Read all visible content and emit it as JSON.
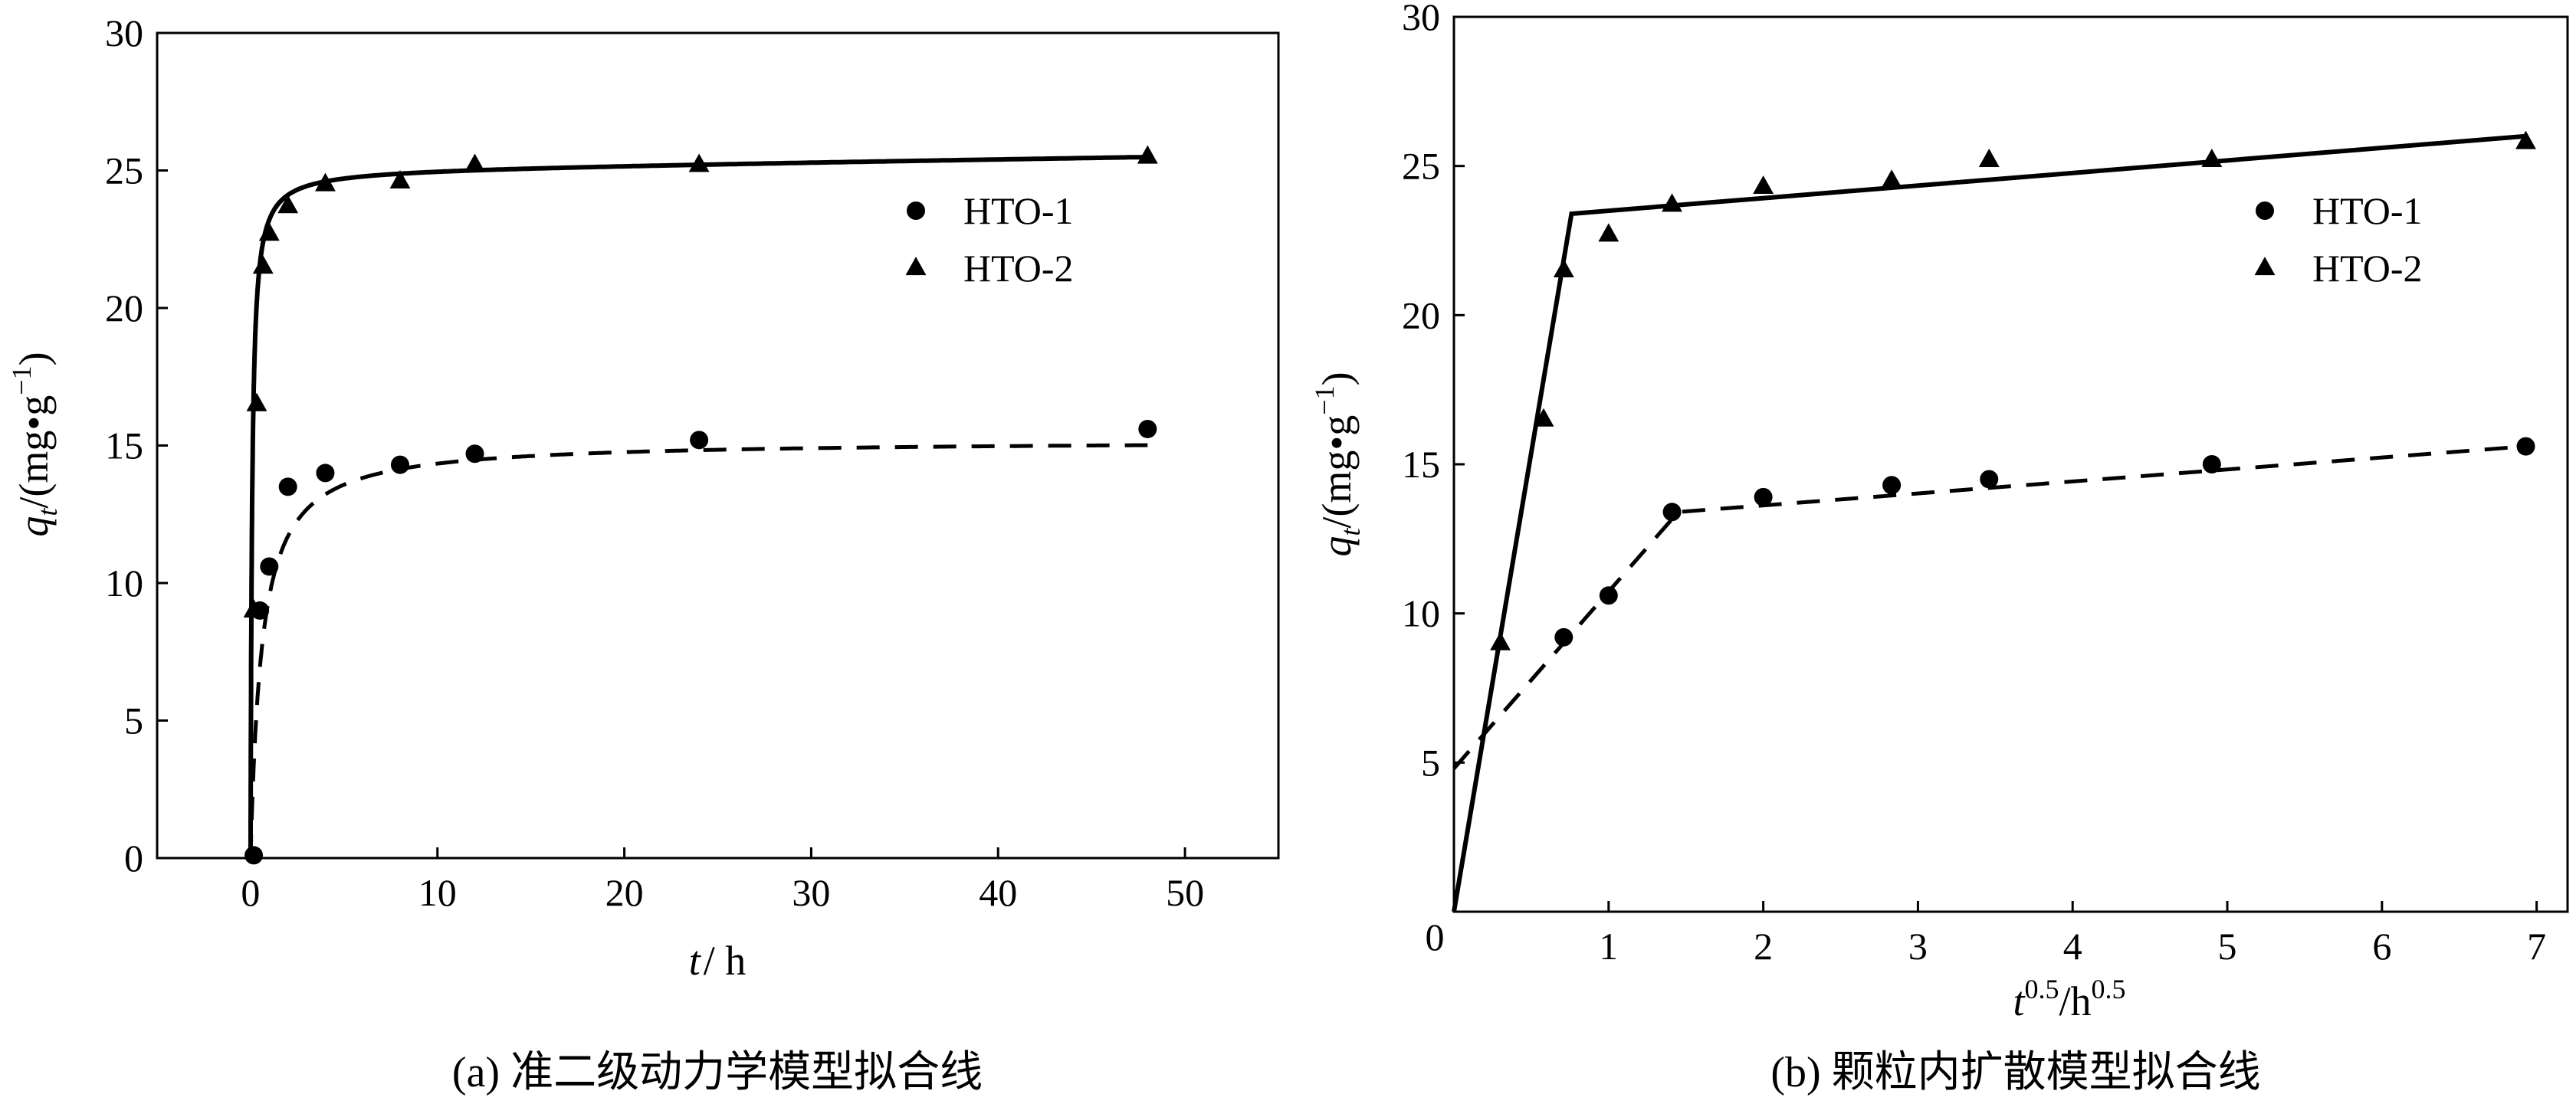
{
  "chart_data": [
    {
      "type": "scatter",
      "caption": "(a) 准二级动力学模型拟合线",
      "xlabel_main": "t",
      "xlabel_unit": "/ h",
      "ylabel_main": "q",
      "ylabel_sub": "t",
      "ylabel_unit": "/(mg•g",
      "ylabel_exp": "−1",
      "ylabel_close": ")",
      "xlim": [
        -5,
        55
      ],
      "ylim": [
        0,
        30
      ],
      "xticks": [
        0,
        10,
        20,
        30,
        40,
        50
      ],
      "yticks": [
        0,
        5,
        10,
        15,
        20,
        25,
        30
      ],
      "legend_position": "top-right",
      "series": [
        {
          "name": "HTO-1",
          "marker": "circle",
          "x": [
            0.17,
            0.5,
            1,
            2,
            4,
            8,
            12,
            24,
            48
          ],
          "y": [
            0.1,
            9.0,
            10.6,
            13.5,
            14.0,
            14.3,
            14.7,
            15.2,
            15.6
          ],
          "fit": {
            "style": "dashed",
            "model": "pseudo-second-order",
            "qe": 15.2,
            "k": 0.11
          }
        },
        {
          "name": "HTO-2",
          "marker": "triangle",
          "x": [
            0.17,
            0.33,
            0.67,
            1,
            2,
            4,
            8,
            12,
            24,
            48
          ],
          "y": [
            9.0,
            16.5,
            21.5,
            22.7,
            23.7,
            24.5,
            24.6,
            25.2,
            25.2,
            25.5
          ],
          "fit": {
            "style": "solid",
            "model": "pseudo-second-order-plus-drift",
            "qe": 25.05,
            "k": 0.5,
            "drift": 0.01
          }
        }
      ]
    },
    {
      "type": "scatter",
      "caption": "(b) 颗粒内扩散模型拟合线",
      "xlabel_base": "t",
      "xlabel_exp": "0.5",
      "xlabel_sep": "/h",
      "xlabel_exp2": "0.5",
      "ylabel_main": "q",
      "ylabel_sub": "t",
      "ylabel_unit": "/(mg•g",
      "ylabel_exp": "−1",
      "ylabel_close": ")",
      "xlim": [
        0,
        7.2
      ],
      "ylim": [
        0,
        30
      ],
      "xticks": [
        0,
        1,
        2,
        3,
        4,
        5,
        6,
        7
      ],
      "yticks": [
        5,
        10,
        15,
        20,
        25,
        30
      ],
      "origin_label": "0",
      "legend_position": "top-right",
      "series": [
        {
          "name": "HTO-1",
          "marker": "circle",
          "x": [
            0.71,
            1.0,
            1.41,
            2.0,
            2.83,
            3.46,
            4.9,
            6.93
          ],
          "y": [
            9.2,
            10.6,
            13.4,
            13.9,
            14.3,
            14.5,
            15.0,
            15.6
          ],
          "fit": {
            "style": "dashed",
            "points": [
              [
                0,
                4.8
              ],
              [
                1.45,
                13.4
              ],
              [
                6.93,
                15.6
              ]
            ]
          }
        },
        {
          "name": "HTO-2",
          "marker": "triangle",
          "x": [
            0.3,
            0.58,
            0.71,
            1.0,
            1.41,
            2.0,
            2.83,
            3.46,
            4.9,
            6.93
          ],
          "y": [
            9.0,
            16.5,
            21.5,
            22.7,
            23.7,
            24.3,
            24.5,
            25.2,
            25.2,
            25.8
          ],
          "fit": {
            "style": "solid",
            "points": [
              [
                0,
                0
              ],
              [
                0.76,
                23.4
              ],
              [
                6.93,
                26.0
              ]
            ]
          }
        }
      ]
    }
  ]
}
